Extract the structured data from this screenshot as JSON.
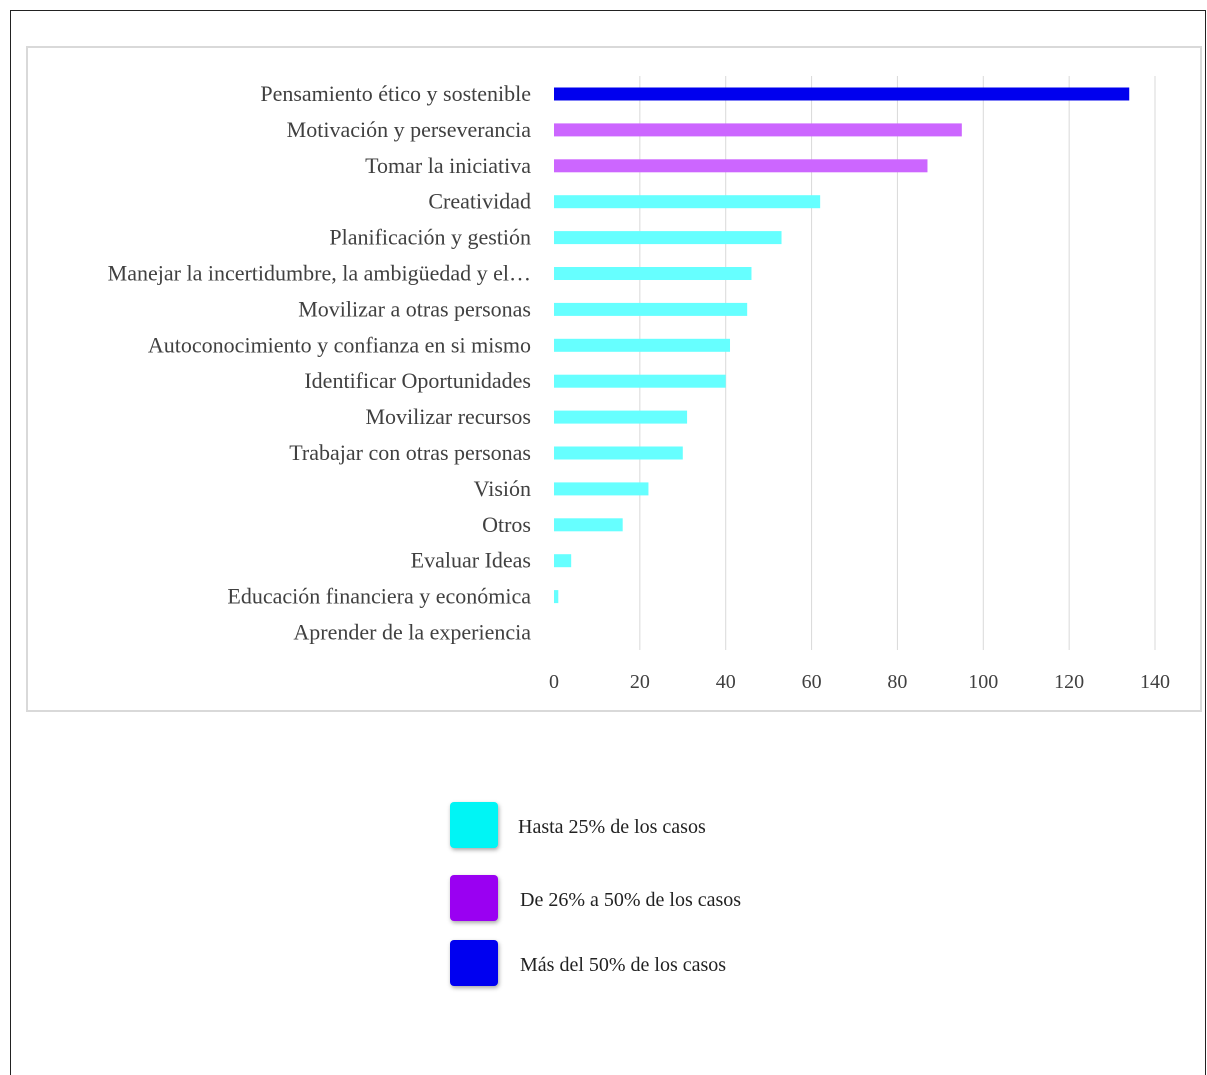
{
  "chart_data": {
    "type": "bar",
    "orientation": "horizontal",
    "title": "",
    "xlabel": "",
    "ylabel": "",
    "xlim": [
      0,
      140
    ],
    "x_ticks": [
      0,
      20,
      40,
      60,
      80,
      100,
      120,
      140
    ],
    "grid": "vertical",
    "categories": [
      "Pensamiento ético y sostenible",
      "Motivación y perseverancia",
      "Tomar la iniciativa",
      "Creatividad",
      "Planificación y gestión",
      "Manejar la incertidumbre, la ambigüedad y el…",
      "Movilizar a otras personas",
      "Autoconocimiento y confianza en si mismo",
      "Identificar Oportunidades",
      "Movilizar recursos",
      "Trabajar con otras personas",
      "Visión",
      "Otros",
      "Evaluar Ideas",
      "Educación financiera y económica",
      "Aprender de la experiencia"
    ],
    "values": [
      134,
      95,
      87,
      62,
      53,
      46,
      45,
      41,
      40,
      31,
      30,
      22,
      16,
      4,
      1,
      0
    ],
    "bar_groups": [
      "high",
      "mid",
      "mid",
      "low",
      "low",
      "low",
      "low",
      "low",
      "low",
      "low",
      "low",
      "low",
      "low",
      "low",
      "low",
      "low"
    ]
  },
  "colors": {
    "low": "#66ffff",
    "mid": "#cc66ff",
    "high": "#0000ee",
    "grid": "#d9d9d9",
    "axis_text": "#404040"
  },
  "legend": {
    "position": "bottom-center",
    "items": [
      {
        "label": "Hasta 25% de los casos",
        "color": "#00f5f5"
      },
      {
        "label": "De 26% a 50% de los casos",
        "color": "#9a00f2"
      },
      {
        "label": "Más del 50% de los casos",
        "color": "#0000f0"
      }
    ]
  }
}
